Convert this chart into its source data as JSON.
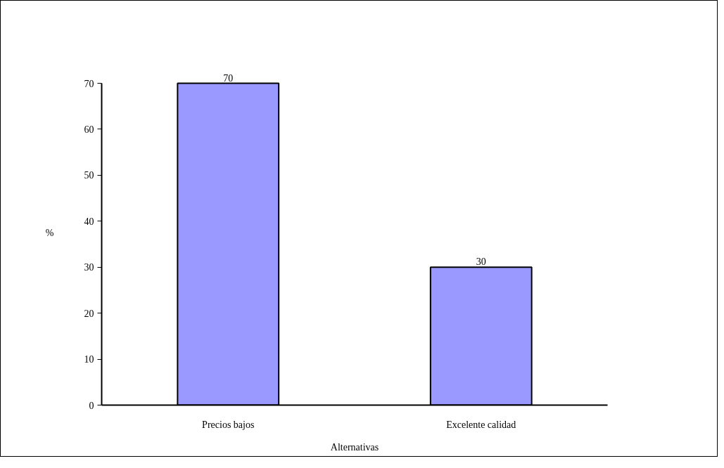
{
  "chart_data": {
    "type": "bar",
    "categories": [
      "Precios bajos",
      "Excelente calidad"
    ],
    "values": [
      70,
      30
    ],
    "color": "#9999ff",
    "xlabel": "Alternativas",
    "ylabel": "%",
    "ylim": [
      0,
      70
    ],
    "yticks": [
      0,
      10,
      20,
      30,
      40,
      50,
      60,
      70
    ],
    "data_labels": true
  }
}
